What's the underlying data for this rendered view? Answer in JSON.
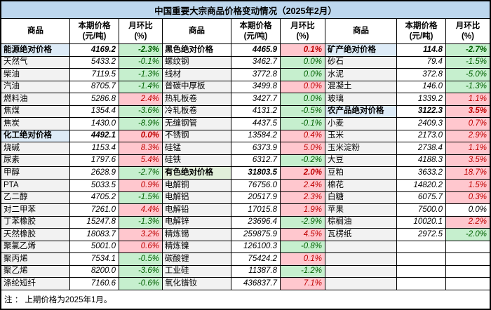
{
  "title": "中国重要大宗商品价格变动情况（2025年2月）",
  "note": "注 ： 上期价格为2025年1月。",
  "headers": {
    "commodity": "商品",
    "price": "本期价格\n(元/吨)",
    "mom": "月环比\n(%)"
  },
  "colors": {
    "title_bg": "#BDD7EE",
    "section_blue": "#DDEBF7",
    "section_green": "#E2EFDA",
    "name_bg": "#F2F2F2",
    "up_bg": "#FFC7CE",
    "up_text": "#C00000",
    "down_bg": "#C6EFCE",
    "down_text": "#006100"
  },
  "groups": [
    {
      "rows": [
        {
          "name": "能源绝对价格",
          "price": "4169.2",
          "mom": "-2.3%",
          "section": true,
          "fill": "blue",
          "dir": "down"
        },
        {
          "name": "天然气",
          "price": "5433.2",
          "mom": "-0.1%",
          "dir": "down"
        },
        {
          "name": "柴油",
          "price": "7119.5",
          "mom": "-1.3%",
          "dir": "down"
        },
        {
          "name": "汽油",
          "price": "8705.7",
          "mom": "-1.4%",
          "dir": "down"
        },
        {
          "name": "燃料油",
          "price": "5286.8",
          "mom": "2.4%",
          "dir": "up"
        },
        {
          "name": "焦煤",
          "price": "1354.4",
          "mom": "-3.6%",
          "dir": "down"
        },
        {
          "name": "焦炭",
          "price": "1430.0",
          "mom": "-8.9%",
          "dir": "down"
        },
        {
          "name": "化工绝对价格",
          "price": "4492.1",
          "mom": "0.0%",
          "section": true,
          "fill": "blue",
          "dir": "up"
        },
        {
          "name": "烧碱",
          "price": "1153.4",
          "mom": "8.3%",
          "dir": "up"
        },
        {
          "name": "尿素",
          "price": "1797.6",
          "mom": "5.4%",
          "dir": "up"
        },
        {
          "name": "甲醇",
          "price": "2628.9",
          "mom": "-2.7%",
          "dir": "down"
        },
        {
          "name": "PTA",
          "price": "5033.5",
          "mom": "0.9%",
          "dir": "up"
        },
        {
          "name": "乙二醇",
          "price": "4705.2",
          "mom": "-1.5%",
          "dir": "down"
        },
        {
          "name": "对二甲苯",
          "price": "7261.0",
          "mom": "4.4%",
          "dir": "up"
        },
        {
          "name": "丁苯橡胶",
          "price": "15247.8",
          "mom": "-1.3%",
          "dir": "down"
        },
        {
          "name": "天然橡胶",
          "price": "18083.7",
          "mom": "3.2%",
          "dir": "up"
        },
        {
          "name": "聚氯乙烯",
          "price": "5001.0",
          "mom": "0.6%",
          "dir": "up"
        },
        {
          "name": "聚丙烯",
          "price": "7534.1",
          "mom": "-0.5%",
          "dir": "down"
        },
        {
          "name": "聚乙烯",
          "price": "8200.0",
          "mom": "-3.6%",
          "dir": "down"
        },
        {
          "name": "涤纶短纤",
          "price": "7160.6",
          "mom": "-0.6%",
          "dir": "down"
        }
      ]
    },
    {
      "rows": [
        {
          "name": "黑色绝对价格",
          "price": "4465.9",
          "mom": "0.1%",
          "section": true,
          "fill": "white",
          "dir": "up"
        },
        {
          "name": "螺纹钢",
          "price": "3462.7",
          "mom": "0.0%",
          "dir": "down"
        },
        {
          "name": "线材",
          "price": "3772.8",
          "mom": "0.0%",
          "dir": "down"
        },
        {
          "name": "普碳中厚板",
          "price": "3499.8",
          "mom": "0.0%",
          "dir": "up"
        },
        {
          "name": "热轧板卷",
          "price": "3427.7",
          "mom": "0.0%",
          "dir": "down"
        },
        {
          "name": "冷轧板卷",
          "price": "4131.2",
          "mom": "-0.5%",
          "dir": "down"
        },
        {
          "name": "无缝钢管",
          "price": "4437.5",
          "mom": "-0.1%",
          "dir": "down"
        },
        {
          "name": "不锈钢",
          "price": "13584.2",
          "mom": "0.4%",
          "dir": "up"
        },
        {
          "name": "硅锰",
          "price": "6373.9",
          "mom": "5.0%",
          "dir": "up"
        },
        {
          "name": "硅铁",
          "price": "6312.7",
          "mom": "-0.2%",
          "dir": "down"
        },
        {
          "name": "有色绝对价格",
          "price": "31803.5",
          "mom": "2.0%",
          "section": true,
          "fill": "green",
          "dir": "up"
        },
        {
          "name": "电解铜",
          "price": "76756.0",
          "mom": "2.4%",
          "dir": "up"
        },
        {
          "name": "电解铝",
          "price": "20517.9",
          "mom": "2.3%",
          "dir": "up"
        },
        {
          "name": "电解铅",
          "price": "17015.8",
          "mom": "1.9%",
          "dir": "up"
        },
        {
          "name": "电解锌",
          "price": "23696.4",
          "mom": "-2.9%",
          "dir": "down"
        },
        {
          "name": "精炼锡",
          "price": "259875.9",
          "mom": "4.5%",
          "dir": "up"
        },
        {
          "name": "精炼镍",
          "price": "126100.3",
          "mom": "-0.8%",
          "dir": "down"
        },
        {
          "name": "碳酸锂",
          "price": "75424.2",
          "mom": "0.1%",
          "dir": "up"
        },
        {
          "name": "工业硅",
          "price": "11387.8",
          "mom": "-1.2%",
          "dir": "down"
        },
        {
          "name": "氧化镨钕",
          "price": "436837.7",
          "mom": "7.1%",
          "dir": "up"
        }
      ]
    },
    {
      "rows": [
        {
          "name": "矿产绝对价格",
          "price": "114.8",
          "mom": "-2.7%",
          "section": true,
          "fill": "blue",
          "dir": "down"
        },
        {
          "name": "砂石",
          "price": "79.4",
          "mom": "-1.5%",
          "dir": "down"
        },
        {
          "name": "水泥",
          "price": "372.8",
          "mom": "-5.0%",
          "dir": "down"
        },
        {
          "name": "混凝土",
          "price": "146.0",
          "mom": "-1.3%",
          "dir": "down"
        },
        {
          "name": "玻璃",
          "price": "1339.2",
          "mom": "1.1%",
          "dir": "up"
        },
        {
          "name": "农产品绝对价格",
          "price": "3122.3",
          "mom": "3.5%",
          "section": true,
          "fill": "blue",
          "dir": "up"
        },
        {
          "name": "小麦",
          "price": "2409.3",
          "mom": "0.7%",
          "dir": "up"
        },
        {
          "name": "玉米",
          "price": "2173.0",
          "mom": "2.9%",
          "dir": "up"
        },
        {
          "name": "玉米淀粉",
          "price": "2738.4",
          "mom": "1.1%",
          "dir": "up"
        },
        {
          "name": "大豆",
          "price": "4188.3",
          "mom": "3.5%",
          "dir": "up"
        },
        {
          "name": "豆粕",
          "price": "3633.2",
          "mom": "18.7%",
          "dir": "up"
        },
        {
          "name": "棉花",
          "price": "14820.2",
          "mom": "1.5%",
          "dir": "up"
        },
        {
          "name": "白糖",
          "price": "6075.7",
          "mom": "0.3%",
          "dir": "up"
        },
        {
          "name": "苹果",
          "price": "7500.0",
          "mom": "0.0%",
          "dir": "flat"
        },
        {
          "name": "棕榈油",
          "price": "10020.1",
          "mom": "2.2%",
          "dir": "up"
        },
        {
          "name": "瓦楞纸",
          "price": "2972.5",
          "mom": "-2.0%",
          "dir": "down"
        },
        {
          "name": "",
          "price": "",
          "mom": "",
          "empty": true
        },
        {
          "name": "",
          "price": "",
          "mom": "",
          "empty": true
        },
        {
          "name": "",
          "price": "",
          "mom": "",
          "empty": true
        },
        {
          "name": "",
          "price": "",
          "mom": "",
          "empty": true
        }
      ]
    }
  ]
}
